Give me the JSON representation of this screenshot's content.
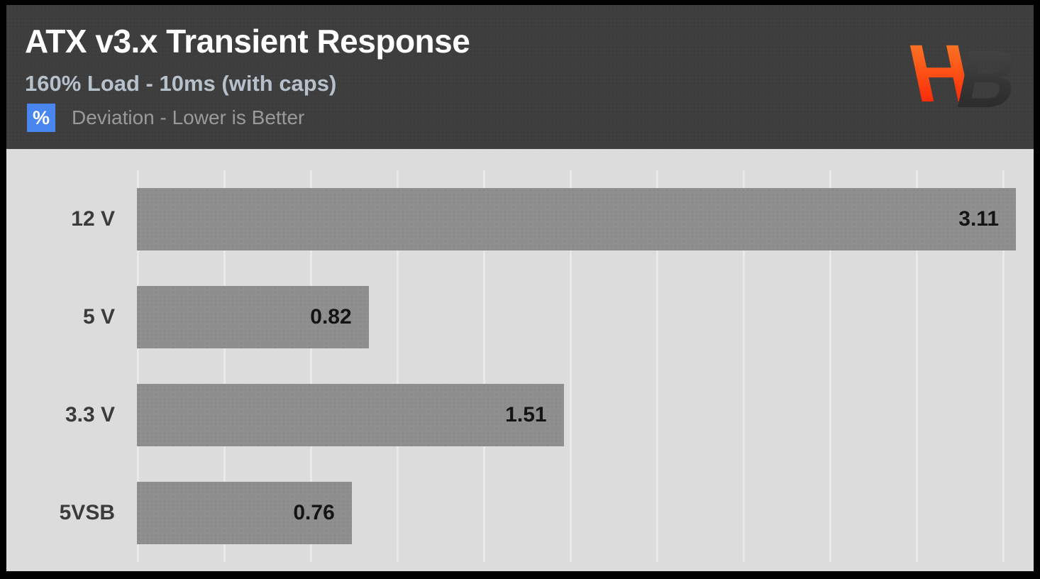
{
  "header": {
    "title": "ATX v3.x Transient Response",
    "subtitle": "160% Load - 10ms (with caps)",
    "unit_badge": "%",
    "legend": "Deviation - Lower is Better",
    "logo_letters": {
      "left": "H",
      "right": "B"
    }
  },
  "colors": {
    "frame": "#000000",
    "header_bg": "#3d3d3d",
    "title_text": "#ffffff",
    "subtitle_text": "#b7c1cb",
    "badge_bg": "#4a86f0",
    "badge_text": "#ffffff",
    "legend_text": "#9a9a9a",
    "plot_bg": "#dcdcdc",
    "gridline": "#e9e9e9",
    "bar": "#8f8f8f",
    "bar_value_text": "#141414",
    "category_text": "#3b3b3b",
    "logo_h_top": "#f9882e",
    "logo_h_bottom": "#fb1404",
    "logo_b_top": "#4a4a4a",
    "logo_b_bottom": "#242424"
  },
  "chart_data": {
    "type": "bar",
    "orientation": "horizontal",
    "title": "ATX v3.x Transient Response",
    "subtitle": "160% Load - 10ms (with caps)",
    "unit": "%",
    "note": "Deviation - Lower is Better",
    "lower_is_better": true,
    "categories": [
      "12 V",
      "5 V",
      "3.3 V",
      "5VSB"
    ],
    "values": [
      3.11,
      0.82,
      1.51,
      0.76
    ],
    "value_labels": [
      "3.11",
      "0.82",
      "1.51",
      "0.76"
    ],
    "xlabel": "Deviation (%)",
    "ylabel": "",
    "xlim": [
      0,
      3.11
    ],
    "grid": "vertical",
    "gridline_count": 11,
    "axis_tick_labels": "none",
    "legend_position": "none"
  }
}
